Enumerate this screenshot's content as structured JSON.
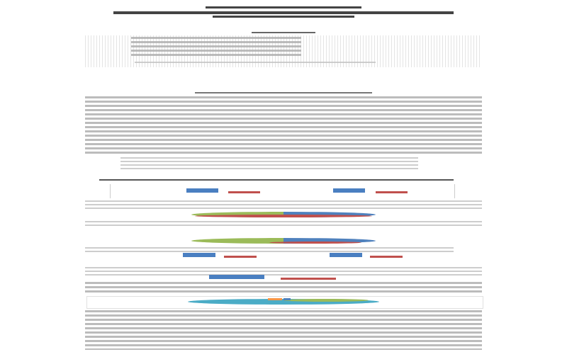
{
  "document": {
    "colors": {
      "text": "#c4c4c4",
      "title": "#444444",
      "bar_blue": "#4a7fc1",
      "bar_red": "#c0504d",
      "pie_green": "#9bbb59",
      "pie_blue": "#4f81bd",
      "pie_red": "#c0504d",
      "pie_teal": "#4bacc6",
      "pie_orange": "#f79646"
    },
    "charts": [
      {
        "type": "bar",
        "series_colors": [
          "#4a7fc1",
          "#c0504d"
        ]
      },
      {
        "type": "pie",
        "slice_colors": [
          "#9bbb59",
          "#4f81bd",
          "#c0504d"
        ]
      },
      {
        "type": "pie",
        "slice_colors": [
          "#9bbb59",
          "#4f81bd",
          "#c0504d"
        ]
      },
      {
        "type": "bar",
        "series_colors": [
          "#4a7fc1",
          "#c0504d"
        ]
      },
      {
        "type": "bar",
        "series_colors": [
          "#4a7fc1",
          "#c0504d"
        ]
      },
      {
        "type": "pie",
        "slice_colors": [
          "#4bacc6",
          "#f79646",
          "#4f81bd",
          "#9bbb59"
        ]
      }
    ]
  }
}
